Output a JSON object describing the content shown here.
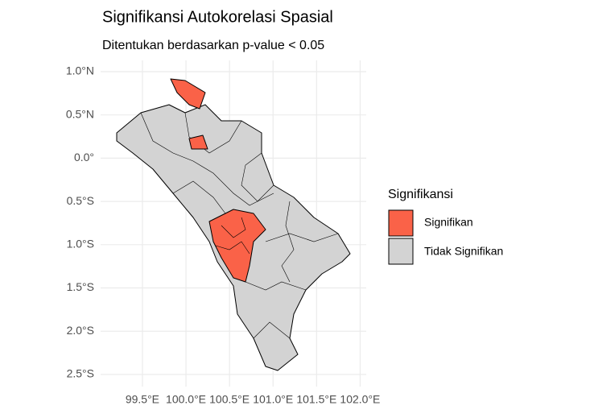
{
  "chart_data": {
    "type": "map",
    "title": "Signifikansi Autokorelasi Spasial",
    "subtitle": "Ditentukan berdasarkan p-value < 0.05",
    "legend": {
      "title": "Signifikansi",
      "position": "right",
      "items": [
        {
          "name": "Signifikan",
          "color": "#fa6248"
        },
        {
          "name": "Tidak Signifikan",
          "color": "#d3d3d3"
        }
      ]
    },
    "xlim": [
      99.02,
      102.07
    ],
    "ylim": [
      -2.64,
      1.13
    ],
    "xticks": [
      {
        "value": 99.5,
        "label": "99.5°E"
      },
      {
        "value": 100.0,
        "label": "100.0°E"
      },
      {
        "value": 100.5,
        "label": "100.5°E"
      },
      {
        "value": 101.0,
        "label": "101.0°E"
      },
      {
        "value": 101.5,
        "label": "101.5°E"
      },
      {
        "value": 102.0,
        "label": "102.0°E"
      }
    ],
    "yticks": [
      {
        "value": 1.0,
        "label": "1.0°N"
      },
      {
        "value": 0.5,
        "label": "0.5°N"
      },
      {
        "value": 0,
        "label": "0.0°"
      },
      {
        "value": -0.5,
        "label": "0.5°S"
      },
      {
        "value": -1.0,
        "label": "1.0°S"
      },
      {
        "value": -1.5,
        "label": "1.5°S"
      },
      {
        "value": -2.0,
        "label": "2.0°S"
      },
      {
        "value": -2.5,
        "label": "2.5°S"
      }
    ],
    "grid": true
  }
}
